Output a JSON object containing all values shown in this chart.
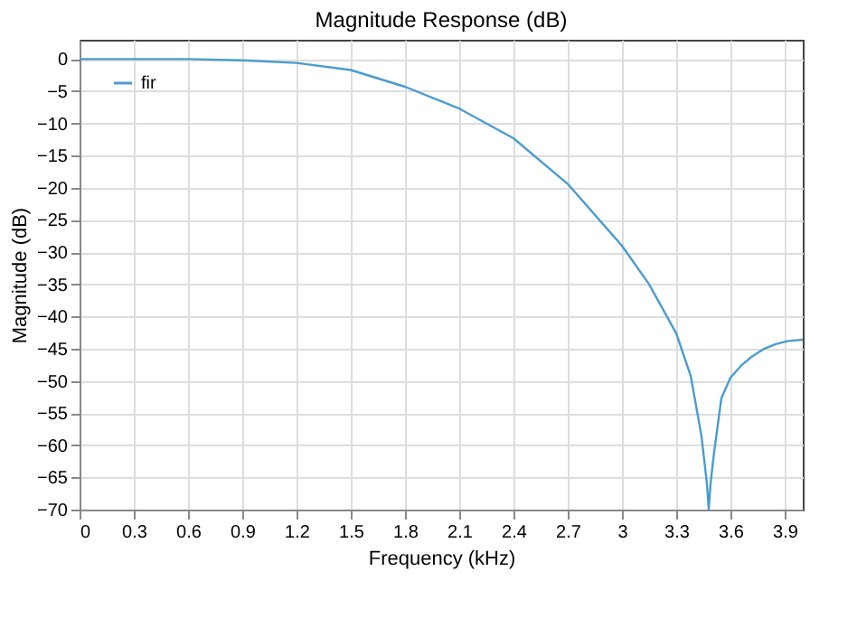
{
  "chart_data": {
    "type": "line",
    "title": "Magnitude Response (dB)",
    "xlabel": "Frequency (kHz)",
    "ylabel": "Magnitude (dB)",
    "x": [
      0,
      0.3,
      0.6,
      0.9,
      1.2,
      1.5,
      1.8,
      2.1,
      2.4,
      2.7,
      3.0,
      3.15,
      3.3,
      3.38,
      3.44,
      3.47,
      3.48,
      3.49,
      3.51,
      3.55,
      3.6,
      3.66,
      3.72,
      3.78,
      3.85,
      3.92,
      4.0
    ],
    "series": [
      {
        "name": "fir",
        "color": "#4a9cd0",
        "values": [
          0,
          0,
          0,
          -0.2,
          -0.6,
          -1.7,
          -4.3,
          -7.7,
          -12.3,
          -19.4,
          -29,
          -35,
          -42.6,
          -49.2,
          -58.6,
          -66,
          -70,
          -66,
          -61,
          -52.7,
          -49.5,
          -47.6,
          -46.2,
          -45.1,
          -44.3,
          -43.8,
          -43.6
        ]
      }
    ],
    "xlim": [
      0,
      4.0
    ],
    "ylim": [
      -70,
      3
    ],
    "xticks": [
      0,
      0.3,
      0.6,
      0.9,
      1.2,
      1.5,
      1.8,
      2.1,
      2.4,
      2.7,
      3,
      3.3,
      3.6,
      3.9
    ],
    "yticks": [
      0,
      -5,
      -10,
      -15,
      -20,
      -25,
      -30,
      -35,
      -40,
      -45,
      -50,
      -55,
      -60,
      -65,
      -70
    ],
    "grid": true,
    "legend": "top left",
    "marker": "none",
    "line_style": "solid"
  }
}
